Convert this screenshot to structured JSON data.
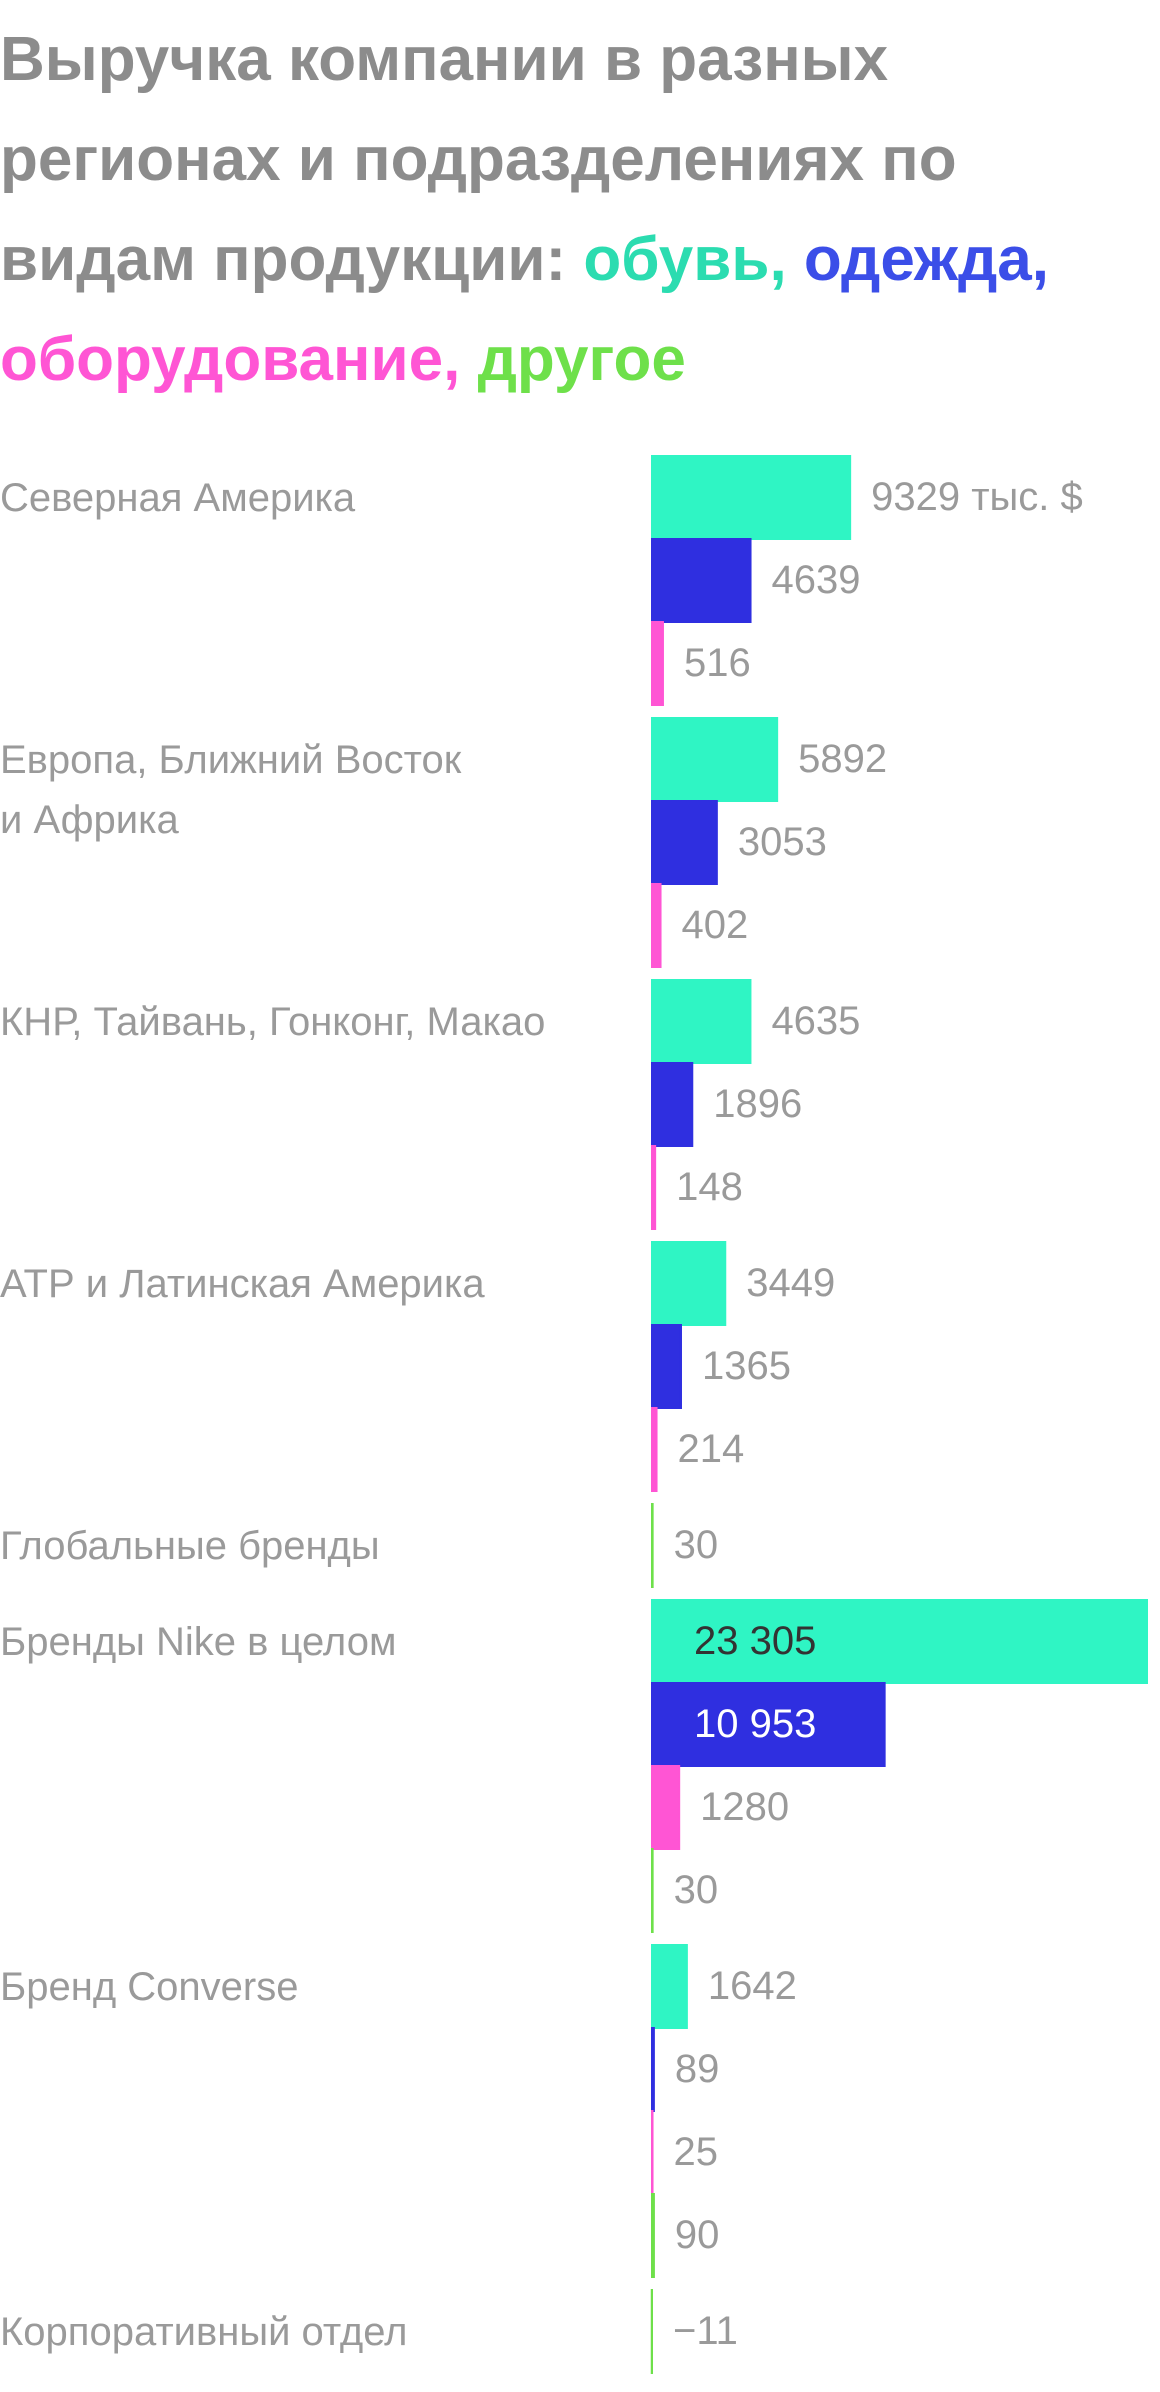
{
  "chart_data": {
    "type": "bar",
    "title": "Выручка компании в разных регионах и подразделениях по видам продукции:",
    "title_separator": ",",
    "categories": [
      "Северная Америка",
      "Европа, Ближний Восток\nи Африка",
      "КНР, Тайвань, Гонконг, Макао",
      "АТР и Латинская Америка",
      "Глобальные бренды",
      "Бренды Nike в целом",
      "Бренд Converse",
      "Корпоративный отдел"
    ],
    "series": [
      {
        "name": "обувь",
        "color": "#2ff5c4",
        "values": [
          9329,
          5892,
          4635,
          3449,
          null,
          23305,
          1642,
          null
        ],
        "value_labels": [
          "9329 тыс. $",
          "5892",
          "4635",
          "3449",
          null,
          "23 305",
          "1642",
          null
        ]
      },
      {
        "name": "одежда",
        "color": "#2f2fe0",
        "values": [
          4639,
          3053,
          1896,
          1365,
          null,
          10953,
          89,
          null
        ],
        "value_labels": [
          "4639",
          "3053",
          "1896",
          "1365",
          null,
          "10 953",
          "89",
          null
        ]
      },
      {
        "name": "оборудование",
        "color": "#ff55d4",
        "values": [
          516,
          402,
          148,
          214,
          null,
          1280,
          25,
          null
        ],
        "value_labels": [
          "516",
          "402",
          "148",
          "214",
          null,
          "1280",
          "25",
          null
        ]
      },
      {
        "name": "другое",
        "color": "#6ee04a",
        "values": [
          null,
          null,
          null,
          null,
          30,
          30,
          90,
          -11
        ],
        "value_labels": [
          null,
          null,
          null,
          null,
          "30",
          "30",
          "90",
          "−11"
        ]
      }
    ]
  }
}
